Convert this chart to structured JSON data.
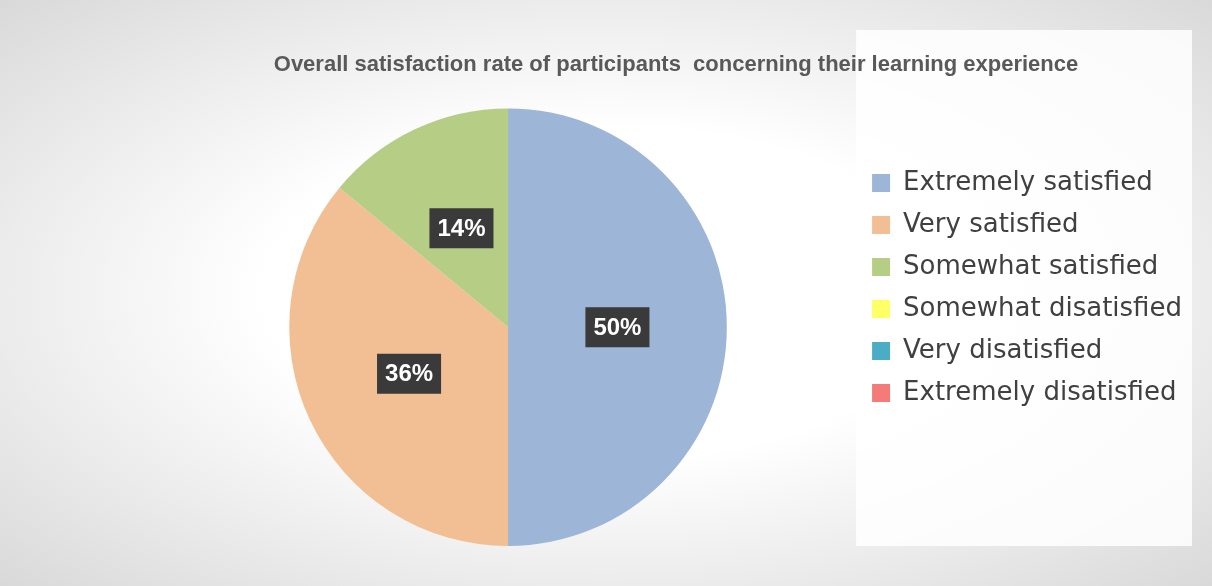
{
  "chart_data": {
    "type": "pie",
    "title": "Overall satisfaction rate of participants  concerning their learning experience",
    "categories": [
      "Extremely satisfied",
      "Very satisfied",
      "Somewhat satisfied",
      "Somewhat disatisfied",
      "Very disatisfied",
      "Extremely disatisfied"
    ],
    "values": [
      50,
      36,
      14,
      0,
      0,
      0
    ],
    "colors": [
      "#9db5d6",
      "#f2bf94",
      "#b5cd85",
      "#ffff66",
      "#4bacc6",
      "#f57a7a"
    ],
    "value_labels": [
      "50%",
      "36%",
      "14%",
      null,
      null,
      null
    ],
    "legend": "right"
  }
}
